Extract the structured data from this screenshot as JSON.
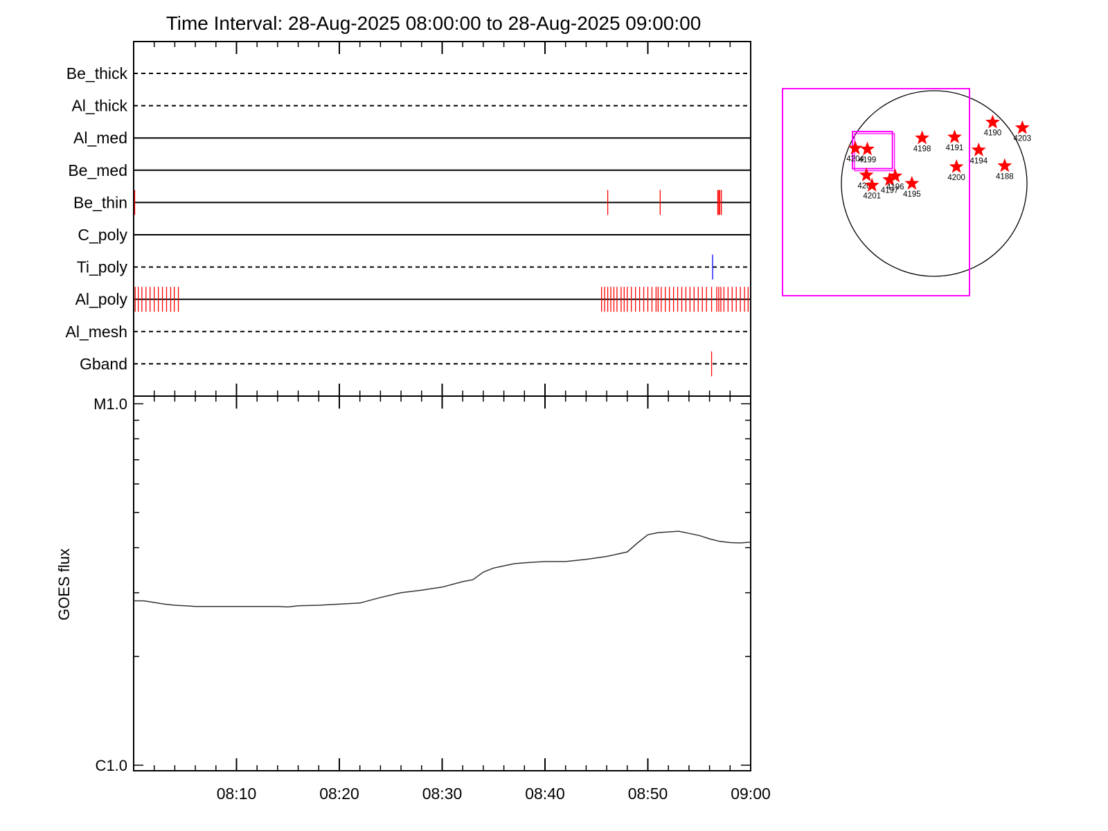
{
  "chart_data": [
    {
      "type": "timeline",
      "title": "Time Interval: 28-Aug-2025 08:00:00 to 28-Aug-2025 09:00:00",
      "x_unit": "minutes after 08:00",
      "xlim": [
        0,
        60
      ],
      "channels": [
        {
          "name": "Be_thick",
          "style": "dashed",
          "events": [],
          "event_color": "#ff0000"
        },
        {
          "name": "Al_thick",
          "style": "dashed",
          "events": [],
          "event_color": "#ff0000"
        },
        {
          "name": "Al_med",
          "style": "solid",
          "events": [],
          "event_color": "#ff0000"
        },
        {
          "name": "Be_med",
          "style": "solid",
          "events": [],
          "event_color": "#ff0000"
        },
        {
          "name": "Be_thin",
          "style": "solid",
          "events": [
            0.1,
            46.1,
            51.2,
            56.8,
            56.9,
            57.0,
            57.15
          ],
          "event_color": "#ff0000"
        },
        {
          "name": "C_poly",
          "style": "solid",
          "events": [],
          "event_color": "#ff0000"
        },
        {
          "name": "Ti_poly",
          "style": "dashed",
          "events": [
            56.3
          ],
          "event_color": "#0000ff"
        },
        {
          "name": "Al_poly",
          "style": "solid",
          "events": [
            0.15,
            0.45,
            0.8,
            1.2,
            1.6,
            2.0,
            2.4,
            2.8,
            3.2,
            3.6,
            3.95,
            4.35,
            45.5,
            45.8,
            46.1,
            46.4,
            46.7,
            47.0,
            47.4,
            47.7,
            48.0,
            48.4,
            48.8,
            49.2,
            49.6,
            50.0,
            50.4,
            50.8,
            51.0,
            51.3,
            51.7,
            52.1,
            52.5,
            52.9,
            53.3,
            53.7,
            54.1,
            54.5,
            54.9,
            55.3,
            55.7,
            56.2,
            56.7,
            56.9,
            57.1,
            57.4,
            57.8,
            58.2,
            58.6,
            59.0,
            59.4,
            59.75
          ],
          "event_color": "#ff0000"
        },
        {
          "name": "Al_mesh",
          "style": "dashed",
          "events": [],
          "event_color": "#ff0000"
        },
        {
          "name": "Gband",
          "style": "dashed",
          "events": [
            56.2
          ],
          "event_color": "#ff0000"
        }
      ]
    },
    {
      "type": "line",
      "title": "",
      "xlabel": "",
      "ylabel": "GOES flux",
      "x_ticks": [
        "08:10",
        "08:20",
        "08:30",
        "08:40",
        "08:50",
        "09:00"
      ],
      "x_tick_values": [
        10,
        20,
        30,
        40,
        50,
        60
      ],
      "xlim": [
        0,
        60
      ],
      "y_scale": "log",
      "ylim": [
        1e-06,
        1e-05
      ],
      "y_tick_labels": [
        "M1.0",
        "C1.0"
      ],
      "y_tick_values": [
        1e-05,
        1e-06
      ],
      "series": [
        {
          "color": "#333333",
          "x": [
            0,
            1,
            2,
            3,
            4,
            5,
            6,
            8,
            10,
            12,
            14,
            15,
            16,
            18,
            20,
            22,
            24,
            26,
            28,
            30,
            32,
            33,
            34,
            35,
            36,
            37,
            38,
            40,
            42,
            44,
            46,
            48,
            49,
            50,
            51,
            52,
            53,
            54,
            55,
            56,
            57,
            58,
            59,
            60
          ],
          "y": [
            2.85e-06,
            2.85e-06,
            2.82e-06,
            2.79e-06,
            2.77e-06,
            2.76e-06,
            2.75e-06,
            2.75e-06,
            2.75e-06,
            2.75e-06,
            2.75e-06,
            2.74e-06,
            2.76e-06,
            2.77e-06,
            2.79e-06,
            2.81e-06,
            2.91e-06,
            3e-06,
            3.05e-06,
            3.11e-06,
            3.22e-06,
            3.26e-06,
            3.42e-06,
            3.51e-06,
            3.56e-06,
            3.61e-06,
            3.63e-06,
            3.66e-06,
            3.66e-06,
            3.71e-06,
            3.78e-06,
            3.89e-06,
            4.12e-06,
            4.34e-06,
            4.4e-06,
            4.42e-06,
            4.44e-06,
            4.38e-06,
            4.32e-06,
            4.23e-06,
            4.16e-06,
            4.13e-06,
            4.12e-06,
            4.14e-06
          ]
        }
      ]
    },
    {
      "type": "scatter",
      "title": "",
      "marker": "star",
      "marker_color": "#ff0000",
      "disk_color": "#000000",
      "box_color": "#ff00ff",
      "xlim": [
        -1,
        1
      ],
      "ylim": [
        -1,
        1
      ],
      "zoom_box": {
        "x": [
          -0.88,
          -0.45
        ],
        "y": [
          0.16,
          0.56
        ]
      },
      "points": [
        {
          "label": "4204",
          "x": -0.85,
          "y": 0.38
        },
        {
          "label": "4199",
          "x": -0.72,
          "y": 0.37
        },
        {
          "label": "4198",
          "x": -0.13,
          "y": 0.49
        },
        {
          "label": "4191",
          "x": 0.22,
          "y": 0.5
        },
        {
          "label": "4190",
          "x": 0.63,
          "y": 0.66
        },
        {
          "label": "4203",
          "x": 0.95,
          "y": 0.6
        },
        {
          "label": "4194",
          "x": 0.48,
          "y": 0.36
        },
        {
          "label": "4200",
          "x": 0.24,
          "y": 0.18
        },
        {
          "label": "4188",
          "x": 0.76,
          "y": 0.19
        },
        {
          "label": "4202",
          "x": -0.73,
          "y": 0.09
        },
        {
          "label": "4201",
          "x": -0.67,
          "y": -0.02
        },
        {
          "label": "4197",
          "x": -0.48,
          "y": 0.04
        },
        {
          "label": "4196",
          "x": -0.42,
          "y": 0.08
        },
        {
          "label": "4195",
          "x": -0.24,
          "y": 0.0
        }
      ]
    }
  ]
}
